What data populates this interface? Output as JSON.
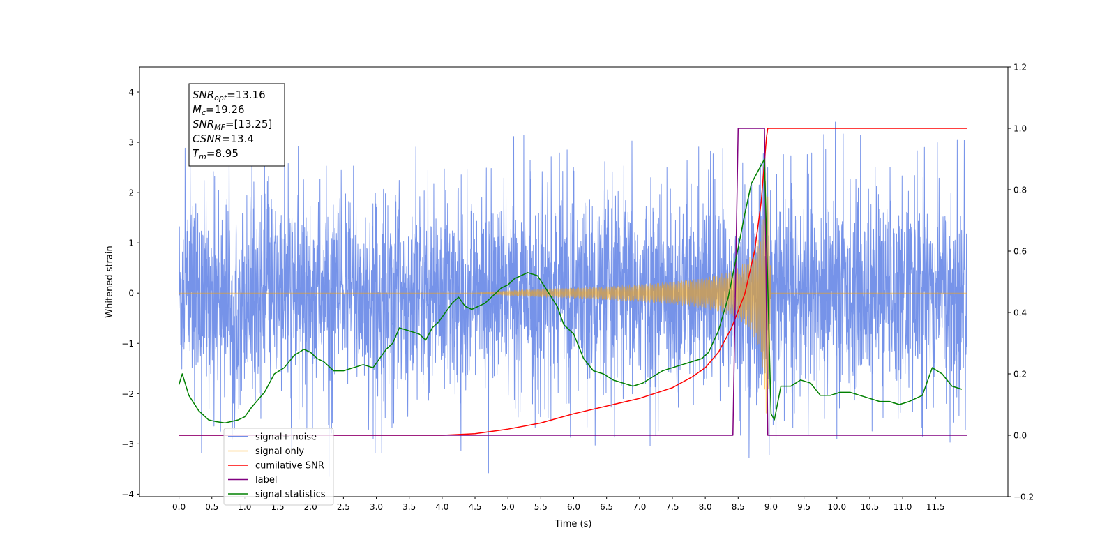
{
  "chart_data": {
    "type": "line",
    "xlabel": "Time (s)",
    "ylabel": "Whitened strain",
    "xlim": [
      -0.6,
      12.6
    ],
    "ylim": [
      -4.05,
      4.5
    ],
    "y2lim": [
      -0.2,
      1.2
    ],
    "x_ticks": [
      "0.0",
      "0.5",
      "1.0",
      "1.5",
      "2.0",
      "2.5",
      "3.0",
      "3.5",
      "4.0",
      "4.5",
      "5.0",
      "5.5",
      "6.0",
      "6.5",
      "7.0",
      "7.5",
      "8.0",
      "8.5",
      "9.0",
      "9.5",
      "10.0",
      "10.5",
      "11.0",
      "11.5"
    ],
    "y_ticks": [
      "4",
      "3",
      "2",
      "1",
      "0",
      "−1",
      "−2",
      "−3",
      "−4"
    ],
    "y2_ticks": [
      "1.2",
      "1.0",
      "0.8",
      "0.6",
      "0.4",
      "0.2",
      "0.0",
      "−0.2"
    ],
    "grid": false,
    "legend": {
      "position": "lower-left",
      "entries": [
        {
          "label": "signal+ noise",
          "color": "#4169e1"
        },
        {
          "label": "signal only",
          "color": "#ffa500"
        },
        {
          "label": "cumilative SNR",
          "color": "#ff0000"
        },
        {
          "label": "label",
          "color": "#800080"
        },
        {
          "label": "signal statistics",
          "color": "#008000"
        }
      ]
    },
    "annotation": {
      "lines": [
        {
          "sym": "SNR",
          "sub": "opt",
          "value": "=13.16"
        },
        {
          "sym": "M",
          "sub": "c",
          "value": "=19.26"
        },
        {
          "sym": "SNR",
          "sub": "MF",
          "value": "=[13.25]"
        },
        {
          "sym": "CSNR",
          "sub": "",
          "value": "=13.4"
        },
        {
          "sym": "T",
          "sub": "m",
          "value": "=8.95"
        }
      ]
    },
    "series": [
      {
        "name": "signal+ noise",
        "axis": "left",
        "color": "#4169e1",
        "x_range": [
          0.0,
          11.98
        ],
        "noise_band": [
          -1.9,
          1.9
        ],
        "noise_peaks": [
          -3.65,
          3.55
        ]
      },
      {
        "name": "signal only",
        "axis": "left",
        "color": "#ffa500",
        "x": [
          0.0,
          4.5,
          5.0,
          5.5,
          6.0,
          6.5,
          7.0,
          7.5,
          8.0,
          8.3,
          8.5,
          8.7,
          8.85,
          8.95,
          9.0,
          11.98
        ],
        "envelope": [
          0.0,
          0.0,
          0.05,
          0.08,
          0.1,
          0.13,
          0.17,
          0.22,
          0.3,
          0.4,
          0.5,
          0.75,
          1.2,
          2.8,
          0.0,
          0.0
        ]
      },
      {
        "name": "cumilative SNR",
        "axis": "right",
        "color": "#ff0000",
        "x": [
          0.0,
          4.0,
          4.5,
          5.0,
          5.5,
          6.0,
          6.5,
          7.0,
          7.5,
          7.8,
          8.0,
          8.2,
          8.4,
          8.6,
          8.75,
          8.85,
          8.93,
          8.95,
          11.98
        ],
        "y": [
          0.0,
          0.0,
          0.005,
          0.02,
          0.04,
          0.07,
          0.095,
          0.12,
          0.155,
          0.19,
          0.22,
          0.27,
          0.35,
          0.46,
          0.6,
          0.76,
          0.97,
          1.0,
          1.0
        ]
      },
      {
        "name": "label",
        "axis": "right",
        "color": "#800080",
        "x": [
          0.0,
          8.42,
          8.5,
          8.9,
          8.95,
          11.98
        ],
        "y": [
          0.0,
          0.0,
          1.0,
          1.0,
          0.0,
          0.0
        ]
      },
      {
        "name": "signal statistics",
        "axis": "right",
        "color": "#008000",
        "x": [
          0.0,
          0.05,
          0.15,
          0.3,
          0.45,
          0.55,
          0.7,
          0.9,
          1.0,
          1.1,
          1.3,
          1.45,
          1.6,
          1.75,
          1.9,
          2.0,
          2.1,
          2.2,
          2.35,
          2.5,
          2.65,
          2.8,
          2.95,
          3.05,
          3.15,
          3.25,
          3.35,
          3.5,
          3.65,
          3.75,
          3.85,
          3.95,
          4.05,
          4.15,
          4.25,
          4.35,
          4.45,
          4.55,
          4.65,
          4.75,
          4.9,
          5.0,
          5.1,
          5.2,
          5.3,
          5.45,
          5.6,
          5.75,
          5.85,
          6.0,
          6.15,
          6.3,
          6.45,
          6.6,
          6.75,
          6.9,
          7.05,
          7.2,
          7.35,
          7.5,
          7.65,
          7.8,
          7.95,
          8.05,
          8.2,
          8.35,
          8.5,
          8.6,
          8.7,
          8.8,
          8.9,
          9.0,
          9.05,
          9.15,
          9.3,
          9.45,
          9.6,
          9.75,
          9.9,
          10.05,
          10.2,
          10.35,
          10.5,
          10.65,
          10.8,
          10.95,
          11.1,
          11.3,
          11.45,
          11.6,
          11.75,
          11.9
        ],
        "y": [
          0.165,
          0.2,
          0.13,
          0.08,
          0.05,
          0.045,
          0.04,
          0.05,
          0.06,
          0.09,
          0.14,
          0.2,
          0.22,
          0.26,
          0.28,
          0.27,
          0.25,
          0.24,
          0.21,
          0.21,
          0.22,
          0.23,
          0.22,
          0.25,
          0.28,
          0.3,
          0.35,
          0.34,
          0.33,
          0.31,
          0.35,
          0.37,
          0.4,
          0.43,
          0.45,
          0.42,
          0.41,
          0.42,
          0.43,
          0.45,
          0.48,
          0.49,
          0.51,
          0.52,
          0.53,
          0.52,
          0.47,
          0.42,
          0.36,
          0.33,
          0.25,
          0.21,
          0.2,
          0.18,
          0.17,
          0.16,
          0.17,
          0.19,
          0.21,
          0.22,
          0.23,
          0.24,
          0.25,
          0.27,
          0.34,
          0.45,
          0.61,
          0.72,
          0.82,
          0.86,
          0.9,
          0.07,
          0.05,
          0.16,
          0.16,
          0.18,
          0.17,
          0.13,
          0.13,
          0.14,
          0.14,
          0.13,
          0.12,
          0.11,
          0.11,
          0.1,
          0.11,
          0.13,
          0.22,
          0.2,
          0.16,
          0.15
        ]
      }
    ]
  }
}
